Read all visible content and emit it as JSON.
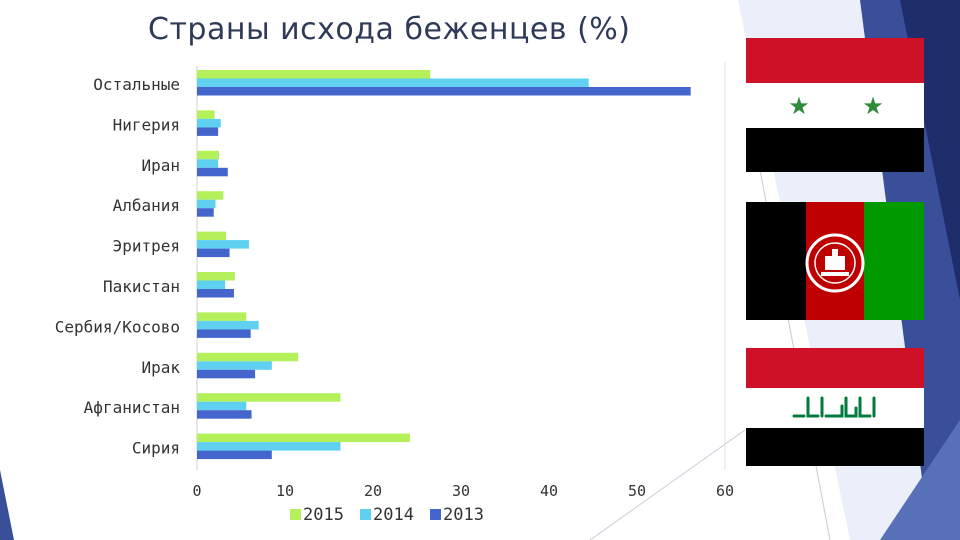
{
  "slide": {
    "title": "Страны исхода беженцев (%)"
  },
  "colors": {
    "series_2015": "#b4f05a",
    "series_2014": "#5fd0ef",
    "series_2013": "#4466cc",
    "text": "#333333",
    "title": "#2e3a57",
    "decor_dark": "#1f2d6b",
    "decor_mid": "#3a4f9a",
    "decor_light": "#5870b8"
  },
  "flags": [
    {
      "name": "syria-flag-icon"
    },
    {
      "name": "afghanistan-flag-icon"
    },
    {
      "name": "iraq-flag-icon"
    }
  ],
  "chart_data": {
    "type": "bar",
    "orientation": "horizontal",
    "title": "",
    "xlabel": "",
    "ylabel": "",
    "xlim": [
      0,
      60
    ],
    "xticks": [
      0,
      10,
      20,
      30,
      40,
      50,
      60
    ],
    "grid": false,
    "legend_position": "bottom",
    "categories": [
      "Остальные",
      "Нигерия",
      "Иран",
      "Албания",
      "Эритрея",
      "Пакистан",
      "Сербия/Косово",
      "Ирак",
      "Афганистан",
      "Сирия"
    ],
    "series": [
      {
        "name": "2015",
        "color": "#b4f05a",
        "values": [
          26.5,
          2.0,
          2.5,
          3.0,
          3.3,
          4.3,
          5.6,
          11.5,
          16.3,
          24.2
        ]
      },
      {
        "name": "2014",
        "color": "#5fd0ef",
        "values": [
          44.5,
          2.7,
          2.4,
          2.1,
          5.9,
          3.2,
          7.0,
          8.5,
          5.6,
          16.3
        ]
      },
      {
        "name": "2013",
        "color": "#4466cc",
        "values": [
          56.1,
          2.4,
          3.5,
          1.9,
          3.7,
          4.2,
          6.1,
          6.6,
          6.2,
          8.5
        ]
      }
    ]
  }
}
